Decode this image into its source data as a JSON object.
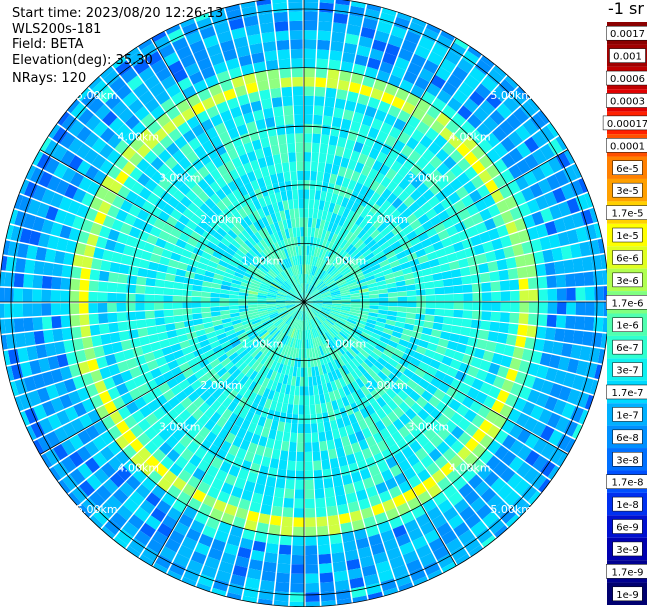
{
  "info": {
    "start_time": "Start time: 2023/08/20 12:26:13",
    "instrument": "WLS200s-181",
    "field": "Field: BETA",
    "elevation": "Elevation(deg): 35.30",
    "nrays": "NRays: 120"
  },
  "colorbar": {
    "title": "-1 sr",
    "labels": [
      "0.0017",
      "0.001",
      "0.0006",
      "0.0003",
      "0.00017",
      "0.0001",
      "6e-5",
      "3e-5",
      "1.7e-5",
      "1e-5",
      "6e-6",
      "3e-6",
      "1.7e-6",
      "1e-6",
      "6e-7",
      "3e-7",
      "1.7e-7",
      "1e-7",
      "6e-8",
      "3e-8",
      "1.7e-8",
      "1e-8",
      "6e-9",
      "3e-9",
      "1.7e-9",
      "1e-9"
    ],
    "colors": [
      "#8b0000",
      "#a00000",
      "#c00000",
      "#e00000",
      "#ff2000",
      "#ff5000",
      "#ff8000",
      "#ffa000",
      "#ffd000",
      "#ffff00",
      "#e0ff20",
      "#b0ff50",
      "#80ff80",
      "#50ffb0",
      "#30ffd0",
      "#10f0f0",
      "#00d8ff",
      "#00b0ff",
      "#0090ff",
      "#0070ff",
      "#0050ff",
      "#0030f0",
      "#0010d0",
      "#0000b0",
      "#000090",
      "#000070"
    ]
  },
  "chart_data": {
    "type": "heatmap",
    "projection": "polar PPI",
    "field": "BETA",
    "nrays": 120,
    "range_rings_km": [
      1,
      2,
      3,
      4,
      5
    ],
    "ring_labels": [
      "1.00km",
      "2.00km",
      "3.00km",
      "4.00km",
      "5.00km"
    ],
    "radial_lines_deg": [
      0,
      30,
      60,
      90,
      120,
      150,
      180,
      210,
      240,
      270,
      300,
      330
    ],
    "max_range_km": 5.2,
    "bright_band_range_km": 3.8,
    "color_scale": "log",
    "clim": [
      1e-09,
      0.0017
    ]
  }
}
